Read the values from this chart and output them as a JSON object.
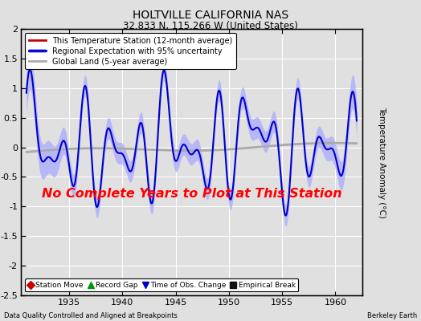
{
  "title": "HOLTVILLE CALIFORNIA NAS",
  "subtitle": "32.833 N, 115.266 W (United States)",
  "ylabel": "Temperature Anomaly (°C)",
  "xlabel_note": "Data Quality Controlled and Aligned at Breakpoints",
  "credit": "Berkeley Earth",
  "no_data_text": "No Complete Years to Plot at This Station",
  "xlim": [
    1930.5,
    1962.5
  ],
  "ylim": [
    -2.5,
    2.0
  ],
  "yticks": [
    -2.5,
    -2.0,
    -1.5,
    -1.0,
    -0.5,
    0.0,
    0.5,
    1.0,
    1.5,
    2.0
  ],
  "xticks": [
    1935,
    1940,
    1945,
    1950,
    1955,
    1960
  ],
  "background_color": "#e0e0e0",
  "plot_bg_color": "#e0e0e0",
  "grid_color": "#ffffff",
  "regional_color": "#0000cc",
  "regional_fill_color": "#aaaaff",
  "station_color": "#cc0000",
  "global_land_color": "#aaaaaa",
  "no_data_color": "#ff0000",
  "legend1_entries": [
    {
      "label": "This Temperature Station (12-month average)",
      "color": "#cc0000"
    },
    {
      "label": "Regional Expectation with 95% uncertainty",
      "color": "#0000cc",
      "fill": "#aaaaff"
    },
    {
      "label": "Global Land (5-year average)",
      "color": "#aaaaaa"
    }
  ],
  "legend2_entries": [
    {
      "label": "Station Move",
      "color": "#cc0000",
      "marker": "D"
    },
    {
      "label": "Record Gap",
      "color": "#009900",
      "marker": "^"
    },
    {
      "label": "Time of Obs. Change",
      "color": "#0000cc",
      "marker": "v"
    },
    {
      "label": "Empirical Break",
      "color": "#111111",
      "marker": "s"
    }
  ]
}
